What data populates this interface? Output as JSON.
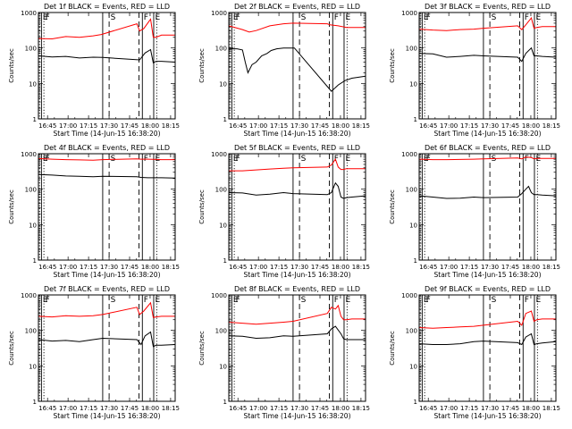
{
  "chart_data": {
    "type": "line",
    "layout": "3x3",
    "ylabel": "Counts/sec",
    "xlabel": "Start Time (14-Jun-15 16:38:20)",
    "yscale": "log",
    "ylim": [
      1,
      1000
    ],
    "ytick_labels": [
      "1",
      "10",
      "100",
      "1000"
    ],
    "xlim_minutes": [
      0,
      100
    ],
    "x_ticks": [
      {
        "t": 6.67,
        "label": "16:45"
      },
      {
        "t": 21.67,
        "label": "17:00"
      },
      {
        "t": 36.67,
        "label": "17:15"
      },
      {
        "t": 51.67,
        "label": "17:30"
      },
      {
        "t": 66.67,
        "label": "17:45"
      },
      {
        "t": 81.67,
        "label": "18:00"
      },
      {
        "t": 96.67,
        "label": "18:15"
      }
    ],
    "series_colors": {
      "events": "#000000",
      "lld": "#ff0000"
    },
    "markers": [
      {
        "t": 0.8,
        "style": "dotted",
        "label": ""
      },
      {
        "t": 2.2,
        "style": "solid",
        "label": "E"
      },
      {
        "t": 4.0,
        "style": "dotted",
        "label": "F"
      },
      {
        "t": 47.0,
        "style": "solid",
        "label": ""
      },
      {
        "t": 51.7,
        "style": "dashed",
        "label": "S"
      },
      {
        "t": 73.5,
        "style": "dashed",
        "label": ""
      },
      {
        "t": 76.0,
        "style": "solid",
        "label": "F"
      },
      {
        "t": 84.3,
        "style": "solid",
        "label": "E"
      },
      {
        "t": 86.5,
        "style": "dotted",
        "label": ""
      }
    ],
    "panels": [
      {
        "title": "Det 1f BLACK = Events, RED = LLD",
        "black": [
          [
            0,
            60
          ],
          [
            10,
            56
          ],
          [
            20,
            58
          ],
          [
            30,
            52
          ],
          [
            40,
            55
          ],
          [
            47,
            54
          ],
          [
            74,
            46
          ],
          [
            78,
            72
          ],
          [
            82,
            90
          ],
          [
            84,
            38
          ],
          [
            86,
            42
          ],
          [
            90,
            42
          ],
          [
            100,
            40
          ]
        ],
        "red": [
          [
            0,
            185
          ],
          [
            10,
            180
          ],
          [
            20,
            210
          ],
          [
            30,
            200
          ],
          [
            40,
            220
          ],
          [
            46,
            240
          ],
          [
            72,
            480
          ],
          [
            74,
            300
          ],
          [
            77,
            350
          ],
          [
            82,
            650
          ],
          [
            84,
            200
          ],
          [
            86,
            200
          ],
          [
            90,
            230
          ],
          [
            100,
            230
          ]
        ]
      },
      {
        "title": "Det 2f BLACK = Events, RED = LLD",
        "black": [
          [
            0,
            95
          ],
          [
            6,
            95
          ],
          [
            10,
            88
          ],
          [
            12,
            40
          ],
          [
            14,
            20
          ],
          [
            17,
            34
          ],
          [
            20,
            40
          ],
          [
            24,
            60
          ],
          [
            28,
            70
          ],
          [
            31,
            85
          ],
          [
            35,
            95
          ],
          [
            40,
            100
          ],
          [
            48,
            100
          ],
          [
            75,
            6
          ],
          [
            80,
            9
          ],
          [
            85,
            12
          ],
          [
            90,
            14
          ],
          [
            100,
            16
          ]
        ],
        "red": [
          [
            0,
            420
          ],
          [
            10,
            330
          ],
          [
            15,
            280
          ],
          [
            20,
            310
          ],
          [
            30,
            420
          ],
          [
            40,
            480
          ],
          [
            47,
            500
          ],
          [
            72,
            480
          ],
          [
            74,
            450
          ],
          [
            80,
            420
          ],
          [
            86,
            380
          ],
          [
            90,
            380
          ],
          [
            100,
            380
          ]
        ]
      },
      {
        "title": "Det 3f BLACK = Events, RED = LLD",
        "black": [
          [
            0,
            70
          ],
          [
            10,
            68
          ],
          [
            20,
            55
          ],
          [
            30,
            58
          ],
          [
            40,
            62
          ],
          [
            47,
            60
          ],
          [
            72,
            55
          ],
          [
            75,
            42
          ],
          [
            78,
            70
          ],
          [
            82,
            100
          ],
          [
            84,
            60
          ],
          [
            86,
            60
          ],
          [
            90,
            58
          ],
          [
            100,
            55
          ]
        ],
        "red": [
          [
            0,
            340
          ],
          [
            10,
            320
          ],
          [
            20,
            310
          ],
          [
            30,
            330
          ],
          [
            40,
            340
          ],
          [
            47,
            360
          ],
          [
            72,
            420
          ],
          [
            75,
            330
          ],
          [
            78,
            450
          ],
          [
            82,
            700
          ],
          [
            84,
            360
          ],
          [
            86,
            380
          ],
          [
            90,
            400
          ],
          [
            100,
            400
          ]
        ]
      },
      {
        "title": "Det 4f BLACK = Events, RED = LLD",
        "black": [
          [
            0,
            260
          ],
          [
            10,
            250
          ],
          [
            20,
            235
          ],
          [
            30,
            230
          ],
          [
            40,
            225
          ],
          [
            47,
            230
          ],
          [
            72,
            225
          ],
          [
            75,
            215
          ],
          [
            80,
            210
          ],
          [
            86,
            210
          ],
          [
            90,
            210
          ],
          [
            100,
            205
          ]
        ],
        "red": [
          [
            0,
            730
          ],
          [
            10,
            700
          ],
          [
            20,
            680
          ],
          [
            30,
            670
          ],
          [
            40,
            660
          ],
          [
            47,
            680
          ],
          [
            72,
            720
          ],
          [
            75,
            700
          ],
          [
            80,
            700
          ],
          [
            86,
            690
          ],
          [
            90,
            680
          ],
          [
            100,
            680
          ]
        ]
      },
      {
        "title": "Det 5f BLACK = Events, RED = LLD",
        "black": [
          [
            0,
            80
          ],
          [
            10,
            78
          ],
          [
            20,
            68
          ],
          [
            30,
            72
          ],
          [
            40,
            80
          ],
          [
            47,
            75
          ],
          [
            72,
            70
          ],
          [
            75,
            80
          ],
          [
            78,
            150
          ],
          [
            80,
            120
          ],
          [
            82,
            60
          ],
          [
            84,
            55
          ],
          [
            86,
            58
          ],
          [
            90,
            60
          ],
          [
            100,
            65
          ]
        ],
        "red": [
          [
            0,
            330
          ],
          [
            10,
            330
          ],
          [
            20,
            350
          ],
          [
            30,
            370
          ],
          [
            40,
            390
          ],
          [
            47,
            400
          ],
          [
            72,
            420
          ],
          [
            75,
            480
          ],
          [
            78,
            700
          ],
          [
            80,
            420
          ],
          [
            82,
            360
          ],
          [
            84,
            360
          ],
          [
            86,
            380
          ],
          [
            90,
            380
          ],
          [
            100,
            380
          ]
        ]
      },
      {
        "title": "Det 6f BLACK = Events, RED = LLD",
        "black": [
          [
            0,
            65
          ],
          [
            10,
            60
          ],
          [
            20,
            55
          ],
          [
            30,
            56
          ],
          [
            40,
            60
          ],
          [
            47,
            58
          ],
          [
            72,
            60
          ],
          [
            75,
            75
          ],
          [
            78,
            100
          ],
          [
            80,
            120
          ],
          [
            82,
            80
          ],
          [
            84,
            70
          ],
          [
            86,
            70
          ],
          [
            90,
            68
          ],
          [
            100,
            65
          ]
        ],
        "red": [
          [
            0,
            700
          ],
          [
            10,
            680
          ],
          [
            20,
            680
          ],
          [
            30,
            690
          ],
          [
            40,
            700
          ],
          [
            47,
            720
          ],
          [
            72,
            760
          ],
          [
            75,
            720
          ],
          [
            78,
            800
          ],
          [
            82,
            780
          ],
          [
            84,
            720
          ],
          [
            86,
            740
          ],
          [
            90,
            740
          ],
          [
            100,
            740
          ]
        ]
      },
      {
        "title": "Det 7f BLACK = Events, RED = LLD",
        "black": [
          [
            0,
            55
          ],
          [
            10,
            50
          ],
          [
            20,
            52
          ],
          [
            30,
            48
          ],
          [
            40,
            55
          ],
          [
            47,
            60
          ],
          [
            72,
            55
          ],
          [
            75,
            40
          ],
          [
            78,
            70
          ],
          [
            82,
            90
          ],
          [
            84,
            35
          ],
          [
            86,
            38
          ],
          [
            90,
            38
          ],
          [
            100,
            40
          ]
        ],
        "red": [
          [
            0,
            250
          ],
          [
            10,
            240
          ],
          [
            20,
            260
          ],
          [
            30,
            250
          ],
          [
            40,
            260
          ],
          [
            47,
            280
          ],
          [
            72,
            450
          ],
          [
            74,
            280
          ],
          [
            77,
            350
          ],
          [
            82,
            600
          ],
          [
            84,
            230
          ],
          [
            86,
            240
          ],
          [
            90,
            250
          ],
          [
            100,
            250
          ]
        ]
      },
      {
        "title": "Det 8f BLACK = Events, RED = LLD",
        "black": [
          [
            0,
            70
          ],
          [
            10,
            68
          ],
          [
            20,
            60
          ],
          [
            30,
            62
          ],
          [
            40,
            70
          ],
          [
            47,
            68
          ],
          [
            72,
            80
          ],
          [
            75,
            110
          ],
          [
            78,
            130
          ],
          [
            82,
            80
          ],
          [
            84,
            58
          ],
          [
            86,
            55
          ],
          [
            90,
            55
          ],
          [
            100,
            55
          ]
        ],
        "red": [
          [
            0,
            170
          ],
          [
            10,
            160
          ],
          [
            20,
            150
          ],
          [
            30,
            160
          ],
          [
            40,
            170
          ],
          [
            47,
            180
          ],
          [
            72,
            300
          ],
          [
            75,
            450
          ],
          [
            78,
            400
          ],
          [
            80,
            500
          ],
          [
            82,
            250
          ],
          [
            84,
            200
          ],
          [
            86,
            200
          ],
          [
            90,
            210
          ],
          [
            100,
            210
          ]
        ]
      },
      {
        "title": "Det 9f BLACK = Events, RED = LLD",
        "black": [
          [
            0,
            42
          ],
          [
            10,
            40
          ],
          [
            20,
            40
          ],
          [
            30,
            42
          ],
          [
            40,
            48
          ],
          [
            47,
            50
          ],
          [
            72,
            45
          ],
          [
            75,
            40
          ],
          [
            78,
            65
          ],
          [
            82,
            80
          ],
          [
            84,
            40
          ],
          [
            86,
            42
          ],
          [
            90,
            44
          ],
          [
            100,
            48
          ]
        ],
        "red": [
          [
            0,
            120
          ],
          [
            10,
            115
          ],
          [
            20,
            120
          ],
          [
            30,
            125
          ],
          [
            40,
            130
          ],
          [
            47,
            140
          ],
          [
            72,
            180
          ],
          [
            75,
            140
          ],
          [
            78,
            300
          ],
          [
            82,
            350
          ],
          [
            84,
            180
          ],
          [
            86,
            200
          ],
          [
            90,
            210
          ],
          [
            100,
            210
          ]
        ]
      }
    ]
  }
}
